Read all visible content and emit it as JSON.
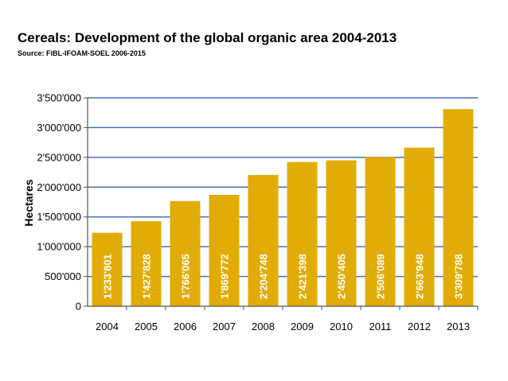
{
  "chart_data": {
    "type": "bar",
    "title": "Cereals: Development of the global organic area 2004-2013",
    "source": "Source: FiBL-IFOAM-SOEL 2006-2015",
    "xlabel": "",
    "ylabel": "Hectares",
    "categories": [
      "2004",
      "2005",
      "2006",
      "2007",
      "2008",
      "2009",
      "2010",
      "2011",
      "2012",
      "2013"
    ],
    "values": [
      1233801,
      1427828,
      1766065,
      1869772,
      2204748,
      2421398,
      2450405,
      2506089,
      2663948,
      3309788
    ],
    "value_labels": [
      "1'233'801",
      "1'427'828",
      "1'766'065",
      "1'869'772",
      "2'204'748",
      "2'421'398",
      "2'450'405",
      "2'506'089",
      "2'663'948",
      "3'309'788"
    ],
    "ylim": [
      0,
      3500000
    ],
    "yticks": [
      0,
      500000,
      1000000,
      1500000,
      2000000,
      2500000,
      3000000,
      3500000
    ],
    "ytick_labels": [
      "0",
      "500'000",
      "1'000'000",
      "1'500'000",
      "2'000'000",
      "2'500'000",
      "3'000'000",
      "3'500'000"
    ],
    "grid": true,
    "colors": {
      "bar": "#E2AC07",
      "grid": "#4A70B8",
      "axis": "#555555"
    }
  }
}
